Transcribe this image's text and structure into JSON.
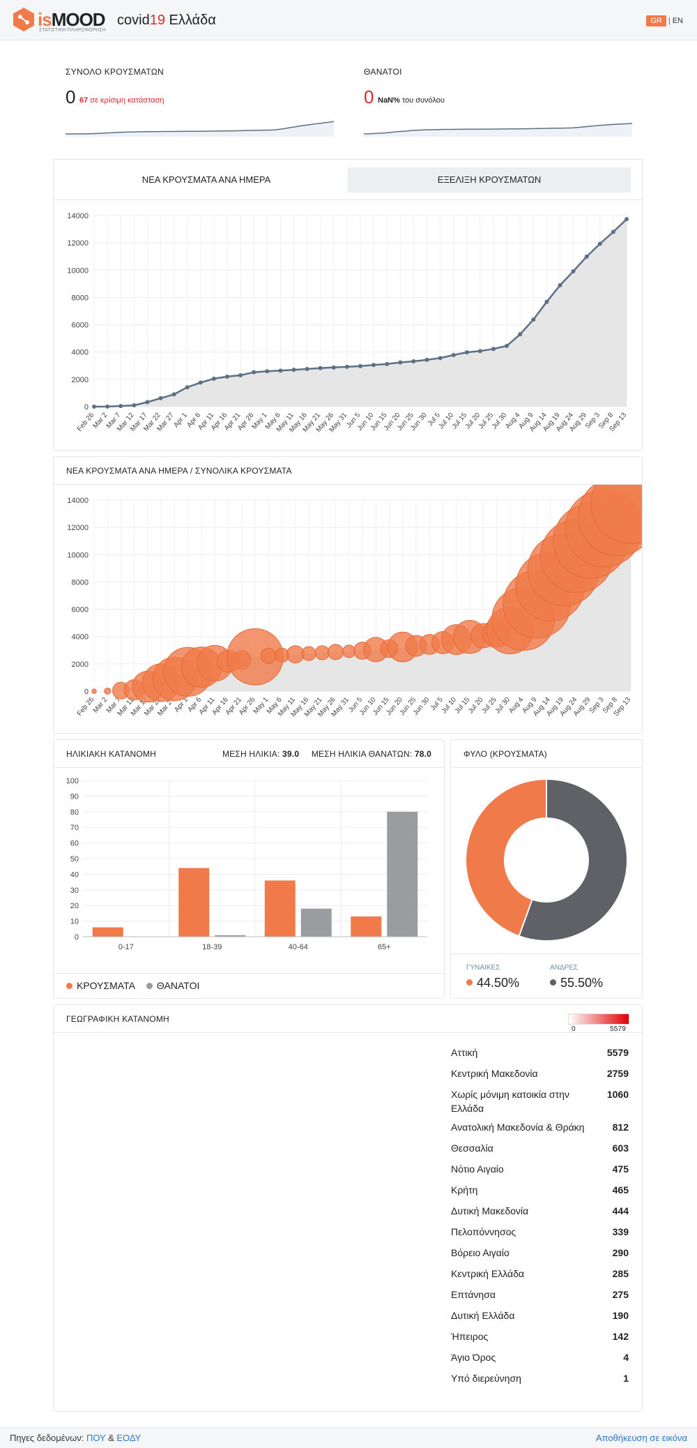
{
  "header": {
    "logo_prefix": "is",
    "logo_suffix": "MOOD",
    "logo_sub": "ΣΤΑΤΙΣΤΙΚΗ ΠΛΗΡΟΦΟΡΗΣΗ",
    "title_prefix": "covid",
    "title_number": "19",
    "title_suffix": " Ελλάδα",
    "lang_gr": "GR",
    "lang_sep": "|",
    "lang_en": "EN"
  },
  "summary": {
    "cases_label": "ΣΥΝΟΛΟ ΚΡΟΥΣΜΑΤΩΝ",
    "cases_value": "0",
    "critical_count": "67",
    "critical_text": " σε κρίσιμη κατάσταση",
    "deaths_label": "ΘΑΝΑΤΟΙ",
    "deaths_value": "0",
    "deaths_pct": "NaN%",
    "deaths_pct_text": " του συνόλου"
  },
  "tabs": [
    {
      "label": "ΝΕΑ ΚΡΟΥΣΜΑΤΑ ΑΝΑ ΗΜΕΡΑ",
      "active": false
    },
    {
      "label": "ΕΞΕΛΙΞΗ ΚΡΟΥΣΜΑΤΩΝ",
      "active": true
    }
  ],
  "bubble_card": {
    "title": "ΝΕΑ ΚΡΟΥΣΜΑΤΑ ΑΝΑ ΗΜΕΡΑ / ΣΥΝΟΛΙΚΑ ΚΡΟΥΣΜΑΤΑ"
  },
  "age_card": {
    "title": "ΗΛΙΚΙΑΚΗ ΚΑΤΑΝΟΜΗ",
    "mean_age_label": "ΜΕΣΗ ΗΛΙΚΙΑ:",
    "mean_age_value": "39.0",
    "mean_death_age_label": "ΜΕΣΗ ΗΛΙΚΙΑ ΘΑΝΑΤΩΝ:",
    "mean_death_age_value": "78.0",
    "legend_cases": "ΚΡΟΥΣΜΑΤΑ",
    "legend_deaths": "ΘΑΝΑΤΟΙ"
  },
  "gender_card": {
    "title": "ΦΥΛΟ (ΚΡΟΥΣΜΑΤΑ)",
    "women_label": "ΓΥΝΑΙΚΕΣ",
    "women_value": "44.50%",
    "men_label": "ΑΝΔΡΕΣ",
    "men_value": "55.50%"
  },
  "geo_card": {
    "title": "ΓΕΩΓΡΑΦΙΚΗ ΚΑΤΑΝΟΜΗ",
    "scale_min": "0",
    "scale_max": "5579",
    "regions": [
      {
        "name": "Αττική",
        "count": "5579"
      },
      {
        "name": "Κεντρική Μακεδονία",
        "count": "2759"
      },
      {
        "name": "Χωρίς μόνιμη κατοικία στην Ελλάδα",
        "count": "1060"
      },
      {
        "name": "Ανατολική Μακεδονία & Θράκη",
        "count": "812"
      },
      {
        "name": "Θεσσαλία",
        "count": "603"
      },
      {
        "name": "Νότιο Αιγαίο",
        "count": "475"
      },
      {
        "name": "Κρήτη",
        "count": "465"
      },
      {
        "name": "Δυτική Μακεδονία",
        "count": "444"
      },
      {
        "name": "Πελοπόννησος",
        "count": "339"
      },
      {
        "name": "Βόρειο Αιγαίο",
        "count": "290"
      },
      {
        "name": "Κεντρική Ελλάδα",
        "count": "285"
      },
      {
        "name": "Επτάνησα",
        "count": "275"
      },
      {
        "name": "Δυτική Ελλάδα",
        "count": "190"
      },
      {
        "name": "Ήπειρος",
        "count": "142"
      },
      {
        "name": "Άγιο Όρος",
        "count": "4"
      },
      {
        "name": "Υπό διερεύνηση",
        "count": "1"
      }
    ]
  },
  "footer": {
    "sources_label": "Πηγες δεδομένων: ",
    "source_1": "ΠΟΥ",
    "amp": " & ",
    "source_2": "ΕΟΔΥ",
    "save_label": "Αποθήκευση σε εικόνα"
  },
  "colors": {
    "accent": "#f07a4a",
    "deaths": "#9a9ca0",
    "line": "#5d6f84",
    "area": "#e6e6e6",
    "men": "#5f6166",
    "red": "#d92b2b"
  },
  "chart_data": [
    {
      "type": "line",
      "chart": "cumulative",
      "x": [
        "Feb 26",
        "Mar 2",
        "Mar 7",
        "Mar 12",
        "Mar 17",
        "Mar 22",
        "Mar 27",
        "Apr 1",
        "Apr 6",
        "Apr 11",
        "Apr 16",
        "Apr 21",
        "Apr 26",
        "May 1",
        "May 6",
        "May 11",
        "May 16",
        "May 21",
        "May 26",
        "May 31",
        "Jun 5",
        "Jun 10",
        "Jun 15",
        "Jun 20",
        "Jun 25",
        "Jun 30",
        "Jul 5",
        "Jul 10",
        "Jul 15",
        "Jul 20",
        "Jul 25",
        "Jul 30",
        "Aug 4",
        "Aug 9",
        "Aug 14",
        "Aug 19",
        "Aug 24",
        "Aug 29",
        "Sep 3",
        "Sep 8",
        "Sep 13"
      ],
      "y": [
        0,
        7,
        45,
        99,
        330,
        620,
        900,
        1420,
        1760,
        2050,
        2200,
        2300,
        2520,
        2590,
        2640,
        2700,
        2760,
        2820,
        2870,
        2920,
        2970,
        3050,
        3120,
        3240,
        3320,
        3430,
        3560,
        3780,
        3980,
        4070,
        4230,
        4450,
        5300,
        6380,
        7680,
        8890,
        9920,
        10990,
        11930,
        12800,
        13730
      ],
      "ylim": [
        0,
        14000
      ],
      "yticks": [
        0,
        2000,
        4000,
        6000,
        8000,
        10000,
        12000,
        14000
      ]
    },
    {
      "type": "scatter",
      "chart": "new_vs_cumulative",
      "x": [
        "Feb 26",
        "Mar 2",
        "Mar 7",
        "Mar 12",
        "Mar 17",
        "Mar 22",
        "Mar 27",
        "Apr 1",
        "Apr 6",
        "Apr 11",
        "Apr 16",
        "Apr 21",
        "Apr 26",
        "May 1",
        "May 6",
        "May 11",
        "May 16",
        "May 21",
        "May 26",
        "May 31",
        "Jun 5",
        "Jun 10",
        "Jun 15",
        "Jun 20",
        "Jun 25",
        "Jun 30",
        "Jul 5",
        "Jul 10",
        "Jul 15",
        "Jul 20",
        "Jul 25",
        "Jul 30",
        "Aug 4",
        "Aug 9",
        "Aug 14",
        "Aug 19",
        "Aug 24",
        "Aug 29",
        "Sep 3",
        "Sep 8",
        "Sep 13"
      ],
      "y": [
        0,
        7,
        45,
        99,
        330,
        620,
        900,
        1420,
        1760,
        2050,
        2200,
        2300,
        2520,
        2590,
        2640,
        2700,
        2760,
        2820,
        2870,
        2920,
        2970,
        3050,
        3120,
        3240,
        3320,
        3430,
        3560,
        3780,
        3980,
        4070,
        4230,
        4450,
        5300,
        6380,
        7680,
        8890,
        9920,
        10990,
        11930,
        12800,
        13730
      ],
      "new_cases": [
        1,
        2,
        14,
        21,
        48,
        71,
        95,
        120,
        82,
        64,
        25,
        18,
        160,
        12,
        10,
        15,
        10,
        10,
        12,
        8,
        15,
        30,
        16,
        45,
        22,
        20,
        25,
        45,
        55,
        30,
        40,
        110,
        200,
        230,
        240,
        260,
        270,
        280,
        300,
        310,
        320
      ],
      "ylim": [
        0,
        14000
      ]
    },
    {
      "type": "bar",
      "chart": "age_distribution",
      "categories": [
        "0-17",
        "18-39",
        "40-64",
        "65+"
      ],
      "series": [
        {
          "name": "ΚΡΟΥΣΜΑΤΑ",
          "values": [
            6,
            44,
            36,
            13
          ]
        },
        {
          "name": "ΘΑΝΑΤΟΙ",
          "values": [
            0,
            1,
            18,
            80
          ]
        }
      ],
      "ylim": [
        0,
        100
      ],
      "yticks": [
        0,
        10,
        20,
        30,
        40,
        50,
        60,
        70,
        80,
        90,
        100
      ]
    },
    {
      "type": "pie",
      "chart": "gender",
      "labels": [
        "ΓΥΝΑΙΚΕΣ",
        "ΑΝΔΡΕΣ"
      ],
      "values": [
        44.5,
        55.5
      ]
    }
  ]
}
